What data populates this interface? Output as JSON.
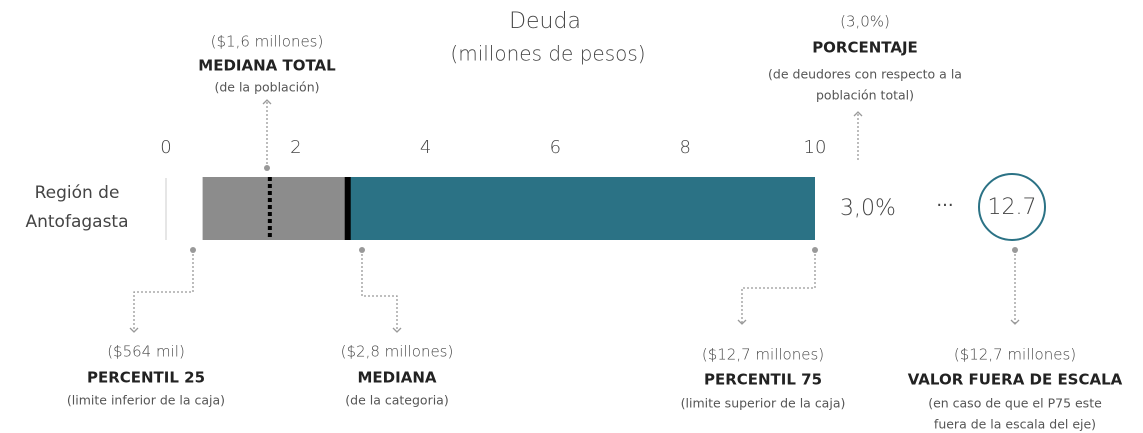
{
  "chart_data": {
    "type": "box",
    "title": "Deuda",
    "subtitle": "(millones de pesos)",
    "category": [
      "Región de",
      "Antofagasta"
    ],
    "xlim": [
      0,
      10
    ],
    "xticks": [
      0,
      2,
      4,
      6,
      8,
      10
    ],
    "p25": 0.564,
    "median": 2.8,
    "p75": 12.7,
    "total_median": 1.6,
    "percentage": 3.0,
    "percentage_label": "3,0%",
    "overflow_marker": "···",
    "out_of_scale": 12.7,
    "out_of_scale_label": "12.7",
    "box_colors": [
      "#8c8c8c",
      "#2b7285"
    ],
    "annotations": {
      "total_median": {
        "value_label": "($1,6 millones)",
        "title": "MEDIANA TOTAL",
        "note": [
          "(de la población)"
        ]
      },
      "percentage": {
        "value_label": "(3,0%)",
        "title": "PORCENTAJE",
        "note": [
          "(de deudores con respecto a la",
          "población total)"
        ]
      },
      "p25": {
        "value_label": "($564 mil)",
        "title": "PERCENTIL 25",
        "note": [
          "(limite inferior de la caja)"
        ]
      },
      "median": {
        "value_label": "($2,8 millones)",
        "title": "MEDIANA",
        "note": [
          "(de la categoria)"
        ]
      },
      "p75": {
        "value_label": "($12,7 millones)",
        "title": "PERCENTIL 75",
        "note": [
          "(limite superior de la caja)"
        ]
      },
      "out_of_scale": {
        "value_label": "($12,7 millones)",
        "title": "VALOR FUERA DE ESCALA",
        "note": [
          "(en caso de que el P75 este",
          "fuera de la escala del eje)"
        ]
      }
    }
  }
}
